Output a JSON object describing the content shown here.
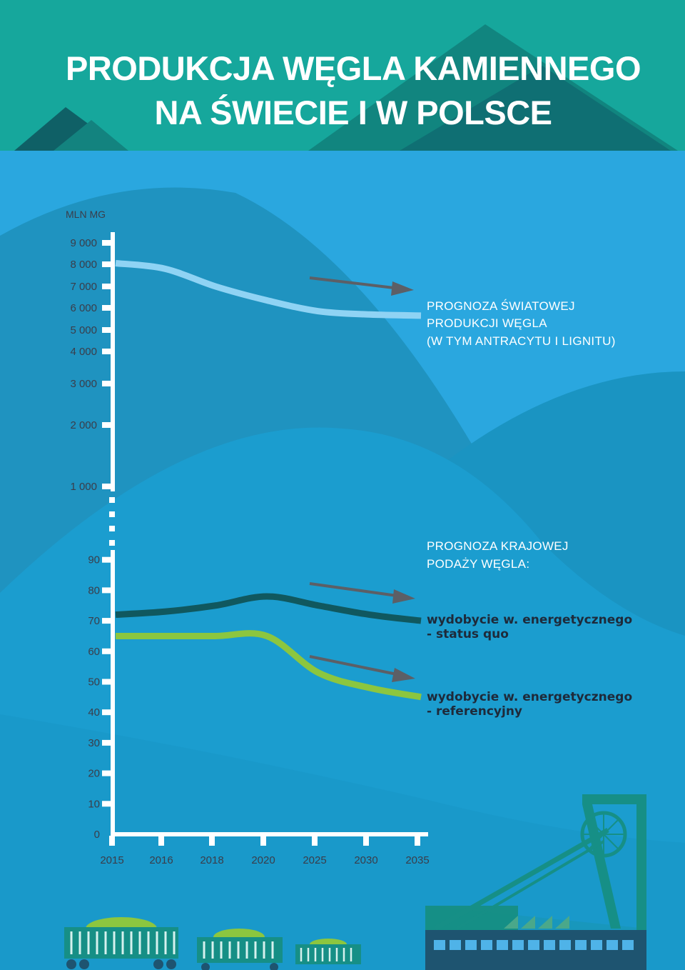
{
  "title": {
    "line1": "PRODUKCJA WĘGLA KAMIENNEGO",
    "line2": "NA ŚWIECIE I W POLSCE"
  },
  "colors": {
    "world_line": "#8fd3f4",
    "status_quo_line": "#10585f",
    "referencyjny_line": "#8cc63f",
    "arrow": "#5c5f66",
    "axis": "#ffffff",
    "title_band": "#16a79c"
  },
  "chart_data": [
    {
      "type": "line",
      "unit_label": "MLN MG",
      "yticks": [
        "9 000",
        "8 000",
        "7 000",
        "6 000",
        "5 000",
        "4 000",
        "3 000",
        "2 000",
        "1 000"
      ],
      "x": [
        "2015",
        "2016",
        "2018",
        "2020",
        "2025",
        "2030",
        "2035"
      ],
      "series": [
        {
          "name": "PROGNOZA ŚWIATOWEJ PRODUKCJI WĘGLA (W TYM ANTRACYTU I LIGNITU)",
          "values": [
            8050,
            7800,
            7000,
            6350,
            5850,
            5700,
            5650
          ],
          "legend_lines": [
            "PROGNOZA ŚWIATOWEJ",
            "PRODUKCJI WĘGLA",
            "(W TYM ANTRACYTU I LIGNITU)"
          ]
        }
      ]
    },
    {
      "type": "line",
      "yticks": [
        "90",
        "80",
        "70",
        "60",
        "50",
        "40",
        "30",
        "20",
        "10",
        "0"
      ],
      "ylim": [
        0,
        90
      ],
      "x": [
        "2015",
        "2016",
        "2018",
        "2020",
        "2025",
        "2030",
        "2035"
      ],
      "heading_lines": [
        "PROGNOZA KRAJOWEJ",
        "PODAŻY WĘGLA:"
      ],
      "series": [
        {
          "name": "wydobycie w. energetycznego - status quo",
          "values": [
            72,
            73,
            75,
            78,
            75,
            72,
            70
          ],
          "legend_lines": [
            "wydobycie w. energetycznego",
            "- status quo"
          ]
        },
        {
          "name": "wydobycie w. energetycznego - referencyjny",
          "values": [
            65,
            65,
            65,
            65,
            53,
            48,
            45
          ],
          "legend_lines": [
            "wydobycie w. energetycznego",
            "- referencyjny"
          ]
        }
      ]
    }
  ]
}
